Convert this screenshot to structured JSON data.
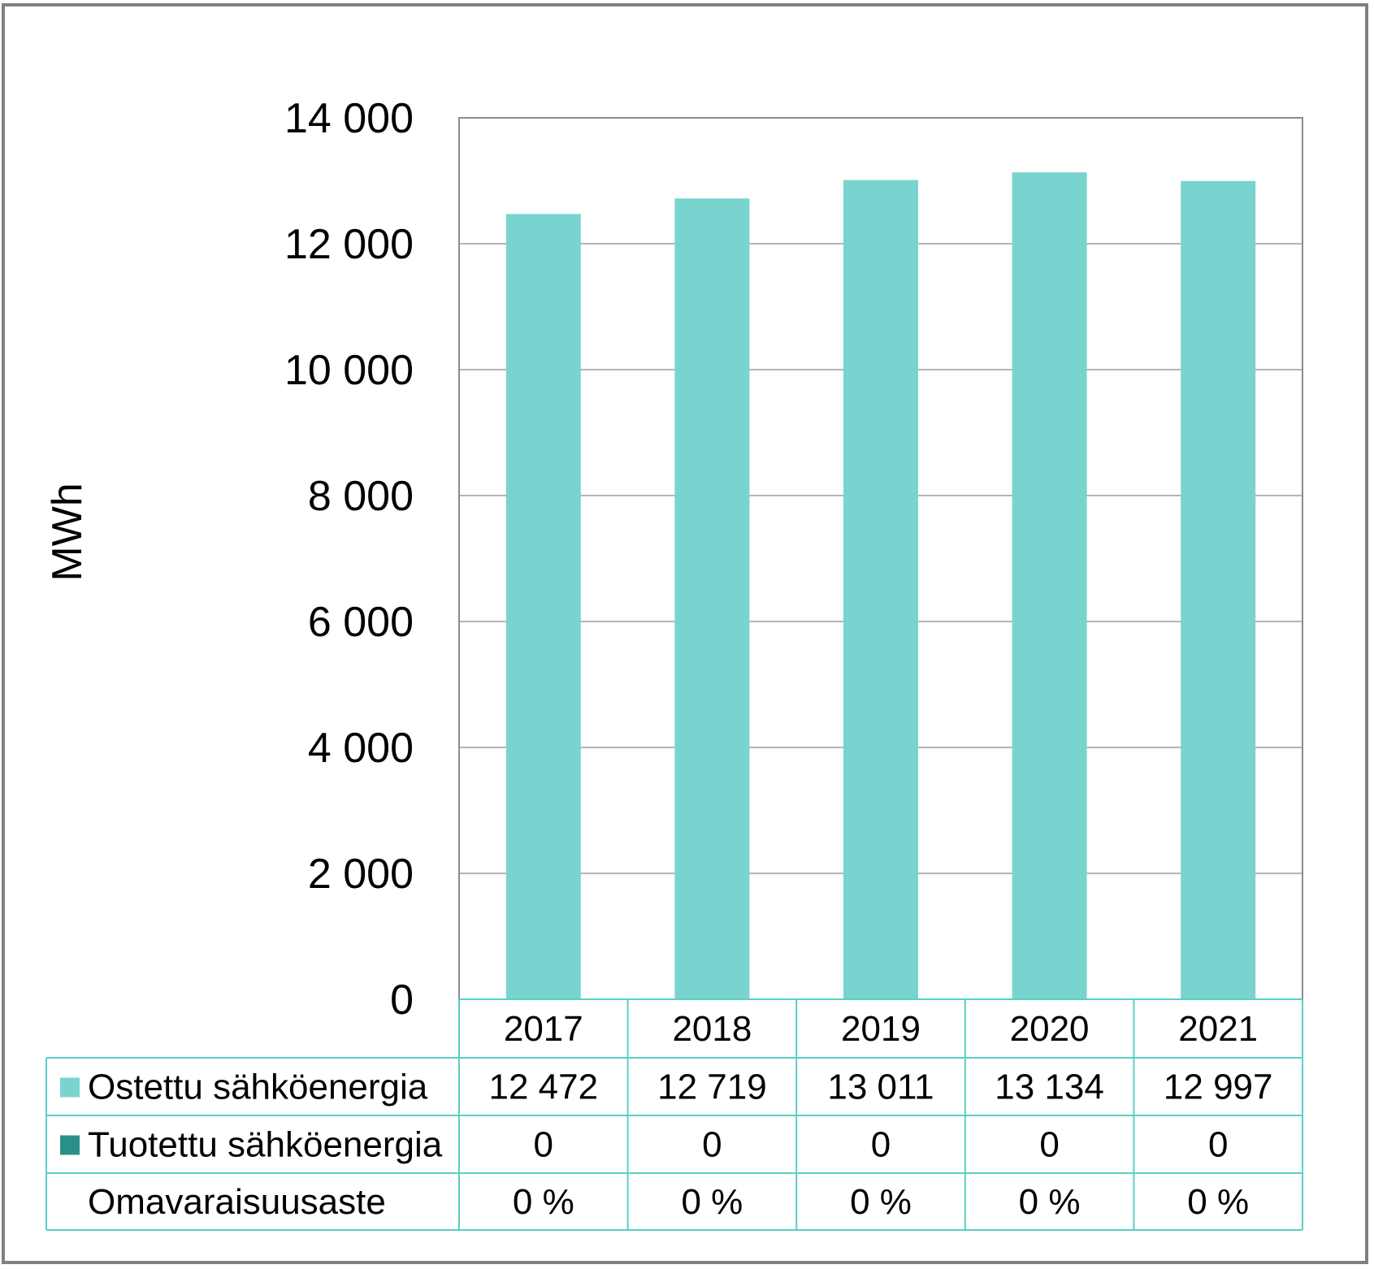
{
  "chart_data": {
    "type": "bar",
    "ylabel": "MWh",
    "ylim": [
      0,
      14000
    ],
    "yticks": [
      "0",
      "2 000",
      "4 000",
      "6 000",
      "8 000",
      "10 000",
      "12 000",
      "14 000"
    ],
    "categories": [
      "2017",
      "2018",
      "2019",
      "2020",
      "2021"
    ],
    "series": [
      {
        "name": "Ostettu sähköenergia",
        "values": [
          12472,
          12719,
          13011,
          13134,
          12997
        ],
        "labels": [
          "12 472",
          "12 719",
          "13 011",
          "13 134",
          "12 997"
        ],
        "color": "#79D4CF"
      },
      {
        "name": "Tuotettu sähköenergia",
        "values": [
          0,
          0,
          0,
          0,
          0
        ],
        "labels": [
          "0",
          "0",
          "0",
          "0",
          "0"
        ],
        "color": "#2A9088"
      }
    ],
    "extra_rows": [
      {
        "name": "Omavaraisuusaste",
        "labels": [
          "0 %",
          "0 %",
          "0 %",
          "0 %",
          "0 %"
        ]
      }
    ],
    "grid": true,
    "legend": "data-table"
  }
}
